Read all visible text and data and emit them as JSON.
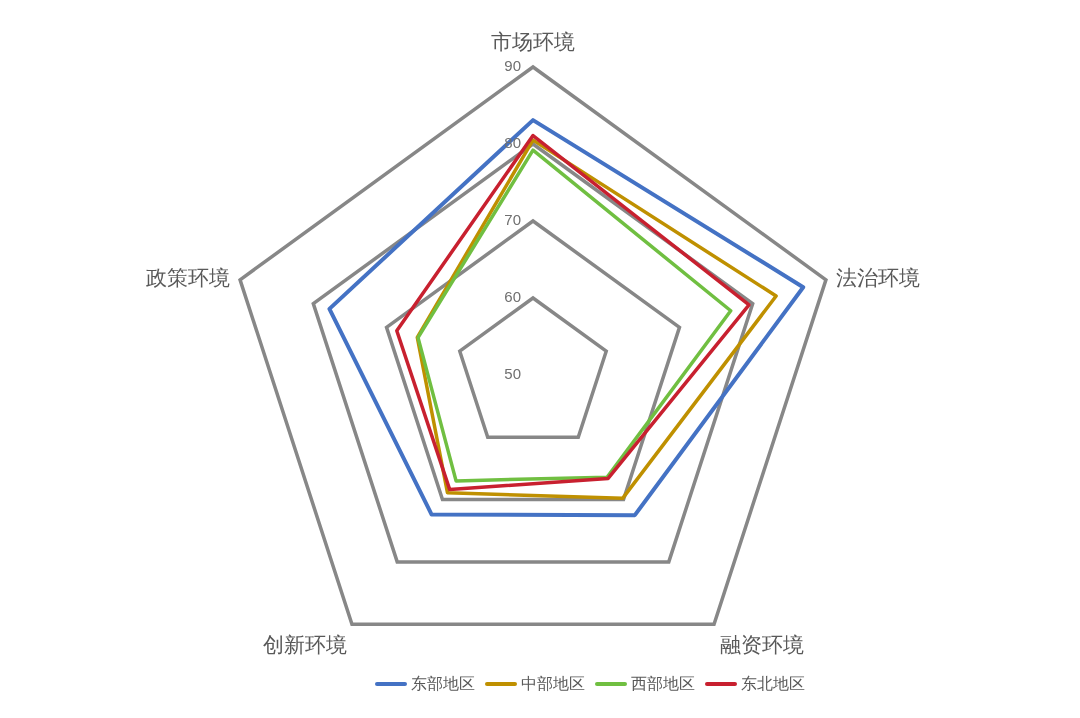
{
  "chart_data": {
    "type": "radar",
    "categories": [
      "市场环境",
      "法治环境",
      "融资环境",
      "创新环境",
      "政策环境"
    ],
    "series": [
      {
        "name": "东部地区",
        "color": "#4472c4",
        "values": [
          83.1,
          86.9,
          72.5,
          72.4,
          77.8
        ]
      },
      {
        "name": "中部地区",
        "color": "#bf9000",
        "values": [
          80.5,
          83.2,
          69.8,
          68.9,
          65.8
        ]
      },
      {
        "name": "西部地区",
        "color": "#70bf41",
        "values": [
          79.2,
          77.0,
          66.4,
          67.0,
          65.7
        ]
      },
      {
        "name": "东北地区",
        "color": "#c8202f",
        "values": [
          81.1,
          79.5,
          66.6,
          68.4,
          68.6
        ]
      }
    ],
    "ylim": [
      50,
      90
    ],
    "yticks": [
      50,
      60,
      70,
      80,
      90
    ],
    "grid": true,
    "legend": "bottom"
  }
}
